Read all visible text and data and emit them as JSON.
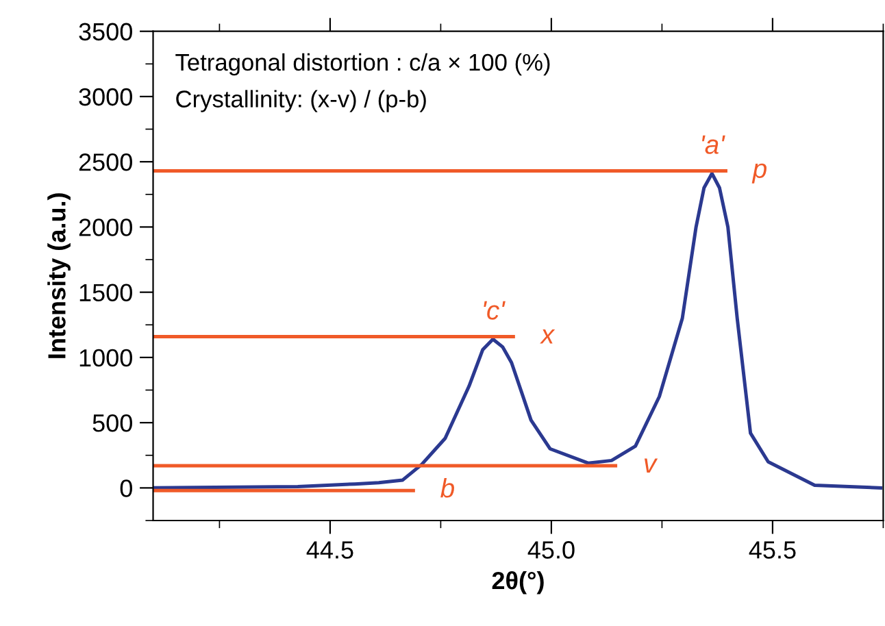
{
  "chart_data": {
    "type": "line",
    "xlabel": "2θ(°)",
    "ylabel": "Intensity (a.u.)",
    "xlim": [
      44.1,
      45.75
    ],
    "ylim": [
      -250,
      3500
    ],
    "xticks": [
      44.5,
      {
        "value": 45.0,
        "label": "45.0"
      },
      45.5
    ],
    "yticks": [
      0,
      500,
      1000,
      1500,
      2000,
      2500,
      3000,
      3500
    ],
    "series": [
      {
        "color": "#2b3990",
        "x": [
          44.1,
          44.427,
          44.556,
          44.61,
          44.664,
          44.707,
          44.76,
          44.814,
          44.845,
          44.868,
          44.89,
          44.91,
          44.954,
          44.997,
          45.083,
          45.136,
          45.19,
          45.244,
          45.296,
          45.327,
          45.345,
          45.363,
          45.38,
          45.399,
          45.42,
          45.45,
          45.49,
          45.595,
          45.744
        ],
        "values": [
          0,
          10,
          30,
          40,
          60,
          180,
          380,
          780,
          1060,
          1140,
          1080,
          960,
          520,
          300,
          190,
          210,
          320,
          700,
          1300,
          2000,
          2300,
          2410,
          2300,
          2000,
          1300,
          420,
          200,
          20,
          0
        ]
      },
      {
        "color": "#f05a28",
        "x": [
          44.1,
          45.394
        ],
        "values": [
          2430,
          2430
        ]
      },
      {
        "color": "#f05a28",
        "x": [
          44.1,
          44.914
        ],
        "values": [
          1160,
          1160
        ]
      },
      {
        "color": "#f05a28",
        "x": [
          44.1,
          45.145
        ],
        "values": [
          170,
          170
        ]
      },
      {
        "color": "#f05a28",
        "x": [
          44.1,
          44.688
        ],
        "values": [
          -20,
          -20
        ]
      }
    ],
    "annotations": [
      "Tetragonal distortion : c/a × 100 (%)",
      "Crystallinity: (x-v) / (p-b)",
      {
        "text": "'a'",
        "x": 45.363,
        "y": 2410
      },
      {
        "text": "p",
        "x": 45.394,
        "y": 2430
      },
      {
        "text": "'c'",
        "x": 44.868,
        "y": 1140
      },
      {
        "text": "x",
        "x": 44.914,
        "y": 1160
      },
      {
        "text": "v",
        "x": 45.145,
        "y": 170
      },
      {
        "text": "b",
        "x": 44.688,
        "y": -20
      }
    ],
    "grid": false,
    "legend": false
  }
}
